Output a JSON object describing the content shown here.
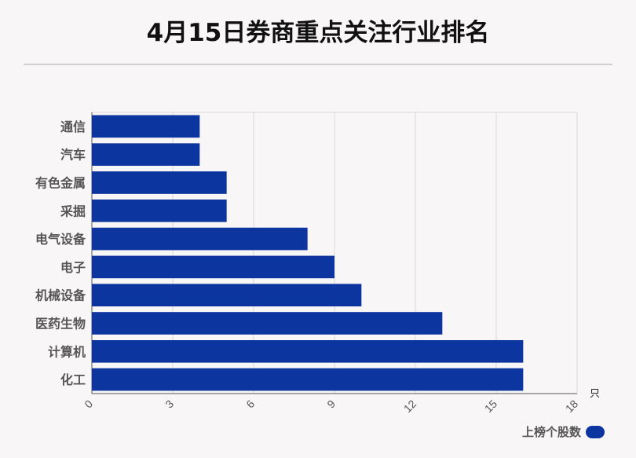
{
  "title": "4月15日券商重点关注行业排名",
  "chart_data": {
    "type": "bar",
    "orientation": "horizontal",
    "categories": [
      "通信",
      "汽车",
      "有色金属",
      "采掘",
      "电气设备",
      "电子",
      "机械设备",
      "医药生物",
      "计算机",
      "化工"
    ],
    "series": [
      {
        "name": "上榜个股数",
        "values": [
          4,
          4,
          5,
          5,
          8,
          9,
          10,
          13,
          16,
          16
        ]
      }
    ],
    "xlim": [
      0,
      18
    ],
    "xticks": [
      "0",
      "3",
      "6",
      "9",
      "12",
      "15",
      "18"
    ],
    "xunit": "只",
    "grid": true,
    "legend_position": "bottom-right",
    "bar_color": "#0d35a0"
  }
}
